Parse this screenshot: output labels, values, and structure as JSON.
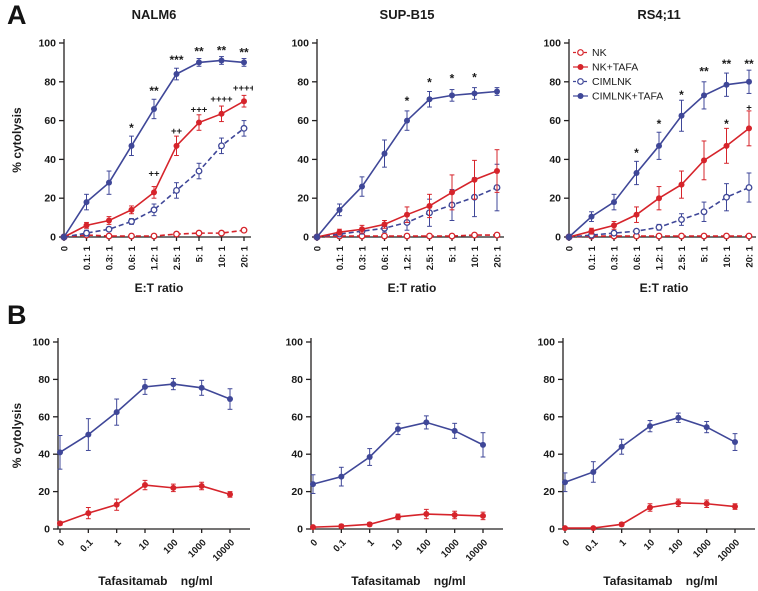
{
  "figure": {
    "panel_a": "A",
    "panel_b": "B"
  },
  "colors": {
    "red": "#d6242b",
    "blue": "#3f4798",
    "axis": "#232020",
    "text": "#1a1a1a"
  },
  "legend": {
    "order": [
      "NK",
      "NK+TAFA",
      "CIMLNK",
      "CIMLNK+TAFA"
    ]
  },
  "chart_data": [
    {
      "id": "A-NALM6",
      "panel": "A",
      "type": "line",
      "title": "NALM6",
      "xlabel": "E:T ratio",
      "ylabel": "% cytolysis",
      "ylim": [
        0,
        100
      ],
      "yticks": [
        0,
        20,
        40,
        60,
        80,
        100
      ],
      "categories": [
        "0",
        "0.1: 1",
        "0.3: 1",
        "0.6: 1",
        "1.2: 1",
        "2.5: 1",
        "5: 1",
        "10: 1",
        "20: 1"
      ],
      "series": [
        {
          "name": "NK",
          "color": "red",
          "line": "dashed",
          "marker": "open",
          "values": [
            0,
            1,
            0.5,
            0.5,
            0.5,
            1.5,
            2,
            2,
            3.5
          ],
          "err": [
            0,
            1,
            0.5,
            0.5,
            0.5,
            0.5,
            0.5,
            0.5,
            1
          ]
        },
        {
          "name": "CIMLNK",
          "color": "blue",
          "line": "dashed",
          "marker": "open",
          "values": [
            0,
            2,
            4,
            8,
            14,
            24,
            34,
            47,
            56
          ],
          "err": [
            0,
            1.5,
            1,
            1.5,
            3,
            4,
            4,
            4,
            4
          ]
        },
        {
          "name": "NK+TAFA",
          "color": "red",
          "line": "solid",
          "marker": "filled",
          "values": [
            0,
            6,
            8.5,
            14,
            23,
            47,
            59,
            63.5,
            70
          ],
          "err": [
            0,
            1.5,
            2,
            2,
            3,
            5,
            4,
            4,
            3
          ]
        },
        {
          "name": "CIMLNK+TAFA",
          "color": "blue",
          "line": "solid",
          "marker": "filled",
          "values": [
            0,
            18,
            28,
            47,
            66,
            84,
            90,
            91,
            90
          ],
          "err": [
            0,
            4,
            6,
            5,
            5,
            3,
            2,
            2,
            2
          ]
        }
      ],
      "annotations": [
        {
          "x": 3,
          "y": 57,
          "text": "*"
        },
        {
          "x": 4,
          "y": 76,
          "text": "**"
        },
        {
          "x": 5,
          "y": 92,
          "text": "***"
        },
        {
          "x": 6,
          "y": 96.5,
          "text": "**"
        },
        {
          "x": 7,
          "y": 97,
          "text": "**"
        },
        {
          "x": 8,
          "y": 96,
          "text": "**"
        },
        {
          "x": 4,
          "y": 33,
          "text": "++"
        },
        {
          "x": 5,
          "y": 55,
          "text": "++"
        },
        {
          "x": 6,
          "y": 66,
          "text": "+++"
        },
        {
          "x": 7,
          "y": 71.5,
          "text": "++++"
        },
        {
          "x": 8,
          "y": 77,
          "text": "++++"
        }
      ],
      "show_legend": false
    },
    {
      "id": "A-SUP-B15",
      "panel": "A",
      "type": "line",
      "title": "SUP-B15",
      "xlabel": "E:T ratio",
      "ylabel": "",
      "ylim": [
        0,
        100
      ],
      "yticks": [
        0,
        20,
        40,
        60,
        80,
        100
      ],
      "categories": [
        "0",
        "0.1: 1",
        "0.3: 1",
        "0.6: 1",
        "1.2: 1",
        "2.5: 1",
        "5: 1",
        "10: 1",
        "20: 1"
      ],
      "series": [
        {
          "name": "NK",
          "color": "red",
          "line": "dashed",
          "marker": "open",
          "values": [
            0,
            0.5,
            0.5,
            0.5,
            0.5,
            0.5,
            0.5,
            1,
            1
          ],
          "err": [
            0,
            0.5,
            0.5,
            0.5,
            0.5,
            0.5,
            0.5,
            0.5,
            0.5
          ]
        },
        {
          "name": "CIMLNK",
          "color": "blue",
          "line": "dashed",
          "marker": "open",
          "values": [
            0,
            1.5,
            3,
            4.5,
            7.5,
            12.5,
            16.5,
            20.5,
            25.5
          ],
          "err": [
            0,
            1,
            1.5,
            2,
            4,
            7,
            8,
            10,
            12
          ]
        },
        {
          "name": "NK+TAFA",
          "color": "red",
          "line": "solid",
          "marker": "filled",
          "values": [
            0,
            2.5,
            4,
            6.5,
            11.5,
            16,
            23,
            29.5,
            34
          ],
          "err": [
            0,
            1.5,
            2,
            2,
            4,
            6,
            9,
            10,
            11
          ]
        },
        {
          "name": "CIMLNK+TAFA",
          "color": "blue",
          "line": "solid",
          "marker": "filled",
          "values": [
            0,
            14,
            26,
            43,
            60,
            71,
            73,
            74,
            75
          ],
          "err": [
            0,
            3,
            5,
            7,
            5,
            4,
            3,
            3,
            2
          ]
        }
      ],
      "annotations": [
        {
          "x": 4,
          "y": 71,
          "text": "*"
        },
        {
          "x": 5,
          "y": 80.5,
          "text": "*"
        },
        {
          "x": 6,
          "y": 82.5,
          "text": "*"
        },
        {
          "x": 7,
          "y": 83,
          "text": "*"
        }
      ],
      "show_legend": false
    },
    {
      "id": "A-RS4;11",
      "panel": "A",
      "type": "line",
      "title": "RS4;11",
      "xlabel": "E:T ratio",
      "ylabel": "",
      "ylim": [
        0,
        100
      ],
      "yticks": [
        0,
        20,
        40,
        60,
        80,
        100
      ],
      "categories": [
        "0",
        "0.1: 1",
        "0.3: 1",
        "0.6: 1",
        "1.2: 1",
        "2.5: 1",
        "5: 1",
        "10: 1",
        "20: 1"
      ],
      "series": [
        {
          "name": "NK",
          "color": "red",
          "line": "dashed",
          "marker": "open",
          "values": [
            0,
            0.5,
            0.5,
            0.5,
            0.5,
            0.5,
            0.5,
            0.5,
            0.5
          ],
          "err": [
            0,
            0.5,
            0.5,
            0.5,
            0.5,
            0.5,
            0.5,
            0.5,
            0.5
          ]
        },
        {
          "name": "CIMLNK",
          "color": "blue",
          "line": "dashed",
          "marker": "open",
          "values": [
            0,
            1,
            2,
            3,
            5,
            9,
            13,
            20.5,
            25.5
          ],
          "err": [
            0,
            0.5,
            1,
            1,
            1.5,
            3,
            5,
            7,
            7.5
          ]
        },
        {
          "name": "NK+TAFA",
          "color": "red",
          "line": "solid",
          "marker": "filled",
          "values": [
            0,
            3,
            6,
            11.5,
            20,
            27,
            39.5,
            47,
            56
          ],
          "err": [
            0,
            1.5,
            2,
            4,
            6,
            7,
            10,
            9,
            9
          ]
        },
        {
          "name": "CIMLNK+TAFA",
          "color": "blue",
          "line": "solid",
          "marker": "filled",
          "values": [
            0,
            10.5,
            18,
            33,
            47,
            62.5,
            73,
            78.5,
            80
          ],
          "err": [
            0,
            2.5,
            4,
            6,
            7,
            8,
            7,
            6,
            6
          ]
        }
      ],
      "annotations": [
        {
          "x": 3,
          "y": 44,
          "text": "*"
        },
        {
          "x": 4,
          "y": 59,
          "text": "*"
        },
        {
          "x": 5,
          "y": 74,
          "text": "*"
        },
        {
          "x": 6,
          "y": 86,
          "text": "**"
        },
        {
          "x": 7,
          "y": 90,
          "text": "**"
        },
        {
          "x": 8,
          "y": 90,
          "text": "**"
        },
        {
          "x": 7,
          "y": 59,
          "text": "*"
        },
        {
          "x": 8,
          "y": 67,
          "text": "+"
        }
      ],
      "show_legend": true
    },
    {
      "id": "B-NALM6",
      "panel": "B",
      "type": "line",
      "title": "",
      "xlabel": "Tafasitamab    ng/ml",
      "ylabel": "% cytolysis",
      "ylim": [
        0,
        100
      ],
      "yticks": [
        0,
        20,
        40,
        60,
        80,
        100
      ],
      "categories": [
        "0",
        "0.1",
        "1",
        "10",
        "100",
        "1000",
        "10000"
      ],
      "series": [
        {
          "name": "NK+TAFA",
          "color": "red",
          "line": "solid",
          "marker": "filled",
          "values": [
            3,
            8.5,
            13,
            23.5,
            22,
            23,
            18.5
          ],
          "err": [
            1,
            3,
            3,
            2.5,
            2,
            2,
            1.5
          ]
        },
        {
          "name": "CIMLNK+TAFA",
          "color": "blue",
          "line": "solid",
          "marker": "filled",
          "values": [
            41,
            50.5,
            62.5,
            76,
            77.5,
            75.5,
            69.5
          ],
          "err": [
            9,
            8.5,
            7,
            4,
            3,
            4,
            5.5
          ]
        }
      ],
      "annotations": [],
      "show_legend": false
    },
    {
      "id": "B-SUP-B15",
      "panel": "B",
      "type": "line",
      "title": "",
      "xlabel": "Tafasitamab    ng/ml",
      "ylabel": "",
      "ylim": [
        0,
        100
      ],
      "yticks": [
        0,
        20,
        40,
        60,
        80,
        100
      ],
      "categories": [
        "0",
        "0.1",
        "1",
        "10",
        "100",
        "1000",
        "10000"
      ],
      "series": [
        {
          "name": "NK+TAFA",
          "color": "red",
          "line": "solid",
          "marker": "filled",
          "values": [
            1,
            1.5,
            2.5,
            6.5,
            8,
            7.5,
            7
          ],
          "err": [
            0.5,
            1,
            1,
            1.5,
            2.5,
            2,
            2
          ]
        },
        {
          "name": "CIMLNK+TAFA",
          "color": "blue",
          "line": "solid",
          "marker": "filled",
          "values": [
            24,
            28,
            38.5,
            53.5,
            57,
            52.5,
            45
          ],
          "err": [
            5,
            5,
            4.5,
            3,
            3.5,
            4,
            6.5
          ]
        }
      ],
      "annotations": [],
      "show_legend": false
    },
    {
      "id": "B-RS4;11",
      "panel": "B",
      "type": "line",
      "title": "",
      "xlabel": "Tafasitamab    ng/ml",
      "ylabel": "",
      "ylim": [
        0,
        100
      ],
      "yticks": [
        0,
        20,
        40,
        60,
        80,
        100
      ],
      "categories": [
        "0",
        "0.1",
        "1",
        "10",
        "100",
        "1000",
        "10000"
      ],
      "series": [
        {
          "name": "NK+TAFA",
          "color": "red",
          "line": "solid",
          "marker": "filled",
          "values": [
            0.5,
            0.5,
            2.5,
            11.5,
            14,
            13.5,
            12
          ],
          "err": [
            0.5,
            0.5,
            1,
            2,
            2,
            2,
            1.5
          ]
        },
        {
          "name": "CIMLNK+TAFA",
          "color": "blue",
          "line": "solid",
          "marker": "filled",
          "values": [
            25,
            30.5,
            44,
            55,
            59.5,
            54.5,
            46.5
          ],
          "err": [
            5,
            5.5,
            4,
            3,
            2.5,
            3,
            4.5
          ]
        }
      ],
      "annotations": [],
      "show_legend": false
    }
  ]
}
